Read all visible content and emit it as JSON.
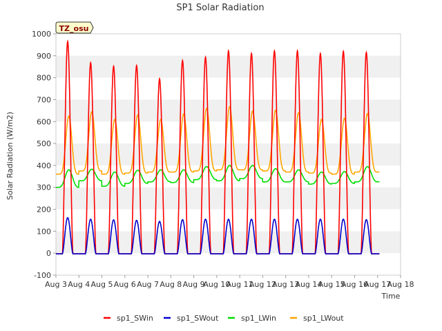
{
  "chart_data": {
    "type": "line",
    "title": "SP1 Solar Radiation",
    "xlabel": "Time",
    "ylabel": "Solar Radiation (W/m2)",
    "badge": "TZ_osu",
    "xlim": [
      3,
      18
    ],
    "ylim": [
      -100,
      1000
    ],
    "x_ticks": [
      3,
      4,
      5,
      6,
      7,
      8,
      9,
      10,
      11,
      12,
      13,
      14,
      15,
      16,
      17,
      18
    ],
    "x_tick_labels": [
      "Aug 3",
      "Aug 4",
      "Aug 5",
      "Aug 6",
      "Aug 7",
      "Aug 8",
      "Aug 9",
      "Aug 10",
      "Aug 11",
      "Aug 12",
      "Aug 13",
      "Aug 14",
      "Aug 15",
      "Aug 16",
      "Aug 17",
      "Aug 18"
    ],
    "y_ticks": [
      -100,
      0,
      100,
      200,
      300,
      400,
      500,
      600,
      700,
      800,
      900,
      1000
    ],
    "grid": "horizontal bands",
    "legend_position": "bottom",
    "days": [
      3,
      4,
      5,
      6,
      7,
      8,
      9,
      10,
      11,
      12,
      13,
      14,
      15,
      16
    ],
    "series": [
      {
        "name": "sp1_SWin",
        "color": "#ff0000",
        "kind": "shortwave",
        "night_value": -3,
        "daily_peak": [
          965,
          868,
          852,
          855,
          795,
          878,
          893,
          922,
          910,
          922,
          922,
          910,
          920,
          915
        ]
      },
      {
        "name": "sp1_SWout",
        "color": "#0000cc",
        "kind": "shortwave",
        "night_value": -3,
        "daily_peak": [
          162,
          155,
          152,
          150,
          145,
          153,
          155,
          155,
          155,
          155,
          155,
          155,
          155,
          153
        ]
      },
      {
        "name": "sp1_LWin",
        "color": "#00dd00",
        "kind": "longwave",
        "daily_min": [
          300,
          330,
          305,
          318,
          325,
          322,
          335,
          330,
          340,
          325,
          325,
          315,
          318,
          325
        ],
        "daily_peak": [
          380,
          383,
          370,
          378,
          380,
          380,
          395,
          400,
          400,
          385,
          380,
          370,
          372,
          395
        ]
      },
      {
        "name": "sp1_LWout",
        "color": "#ffa500",
        "kind": "longwave",
        "daily_min": [
          360,
          375,
          360,
          365,
          370,
          370,
          375,
          380,
          380,
          375,
          370,
          365,
          360,
          370
        ],
        "daily_peak": [
          625,
          645,
          610,
          630,
          610,
          635,
          660,
          668,
          648,
          652,
          640,
          610,
          615,
          637
        ]
      }
    ]
  }
}
